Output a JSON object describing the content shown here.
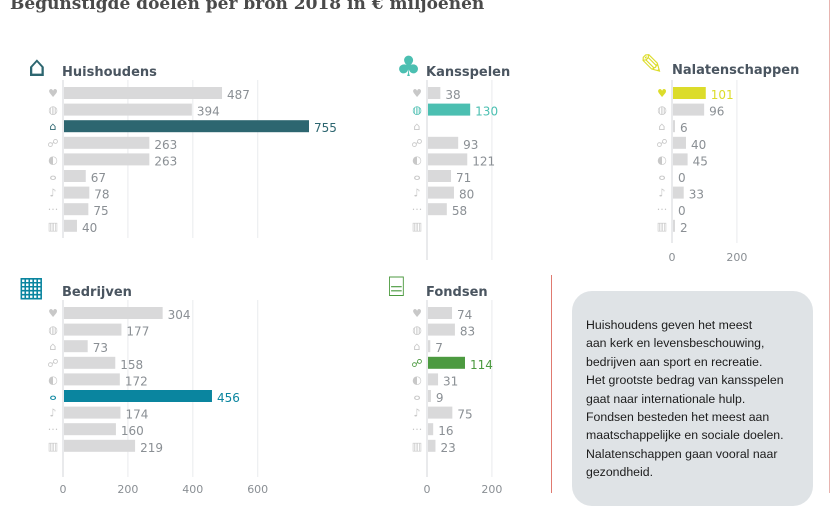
{
  "title": "Begunstigde doelen per bron 2018 in € miljoenen",
  "note": [
    "Huishoudens geven het meest",
    "aan kerk en levensbeschouwing,",
    "bedrijven aan sport en recreatie.",
    "Het grootste bedrag van kansspelen",
    "gaat naar internationale hulp.",
    "Fondsen besteden het meest aan",
    "maatschappelijke en sociale doelen.",
    "Nalatenschappen gaan vooral naar",
    "gezondheid."
  ],
  "category_icons": [
    "heart-pulse-icon",
    "globe-hand-icon",
    "church-icon",
    "family-icon",
    "earth-icon",
    "bicycle-icon",
    "violin-icon",
    "ellipsis-icon",
    "books-icon"
  ],
  "chart_data": [
    {
      "type": "bar",
      "title": "Huishoudens",
      "icon": "house-icon",
      "color": "#2d6670",
      "highlight": 2,
      "values": [
        487,
        394,
        755,
        263,
        263,
        67,
        78,
        75,
        40
      ],
      "xlim": [
        0,
        755
      ],
      "ticks": [
        0,
        200,
        400,
        600
      ],
      "show_tick_labels": false,
      "grid": true
    },
    {
      "type": "bar",
      "title": "Kansspelen",
      "icon": "clover-icon",
      "color": "#4bbfb1",
      "highlight": 1,
      "values": [
        38,
        130,
        null,
        93,
        121,
        71,
        80,
        58,
        null
      ],
      "ticks": [
        0,
        200
      ],
      "show_tick_labels": false,
      "grid": true
    },
    {
      "type": "bar",
      "title": "Nalatenschappen",
      "icon": "pen-icon",
      "color": "#dcdc2a",
      "highlight": 0,
      "values": [
        101,
        96,
        6,
        40,
        45,
        0,
        33,
        0,
        2
      ],
      "ticks": [
        0,
        200
      ],
      "show_tick_labels": true,
      "grid": true
    },
    {
      "type": "bar",
      "title": "Bedrijven",
      "icon": "office-building-icon",
      "color": "#0a859f",
      "highlight": 5,
      "values": [
        304,
        177,
        73,
        158,
        172,
        456,
        174,
        160,
        219
      ],
      "ticks": [
        0,
        200,
        400,
        600
      ],
      "show_tick_labels": true,
      "grid": true
    },
    {
      "type": "bar",
      "title": "Fondsen",
      "icon": "bank-building-icon",
      "color": "#4c9a40",
      "highlight": 3,
      "values": [
        74,
        83,
        7,
        114,
        31,
        9,
        75,
        16,
        23
      ],
      "ticks": [
        0,
        200
      ],
      "show_tick_labels": true,
      "grid": true
    }
  ]
}
